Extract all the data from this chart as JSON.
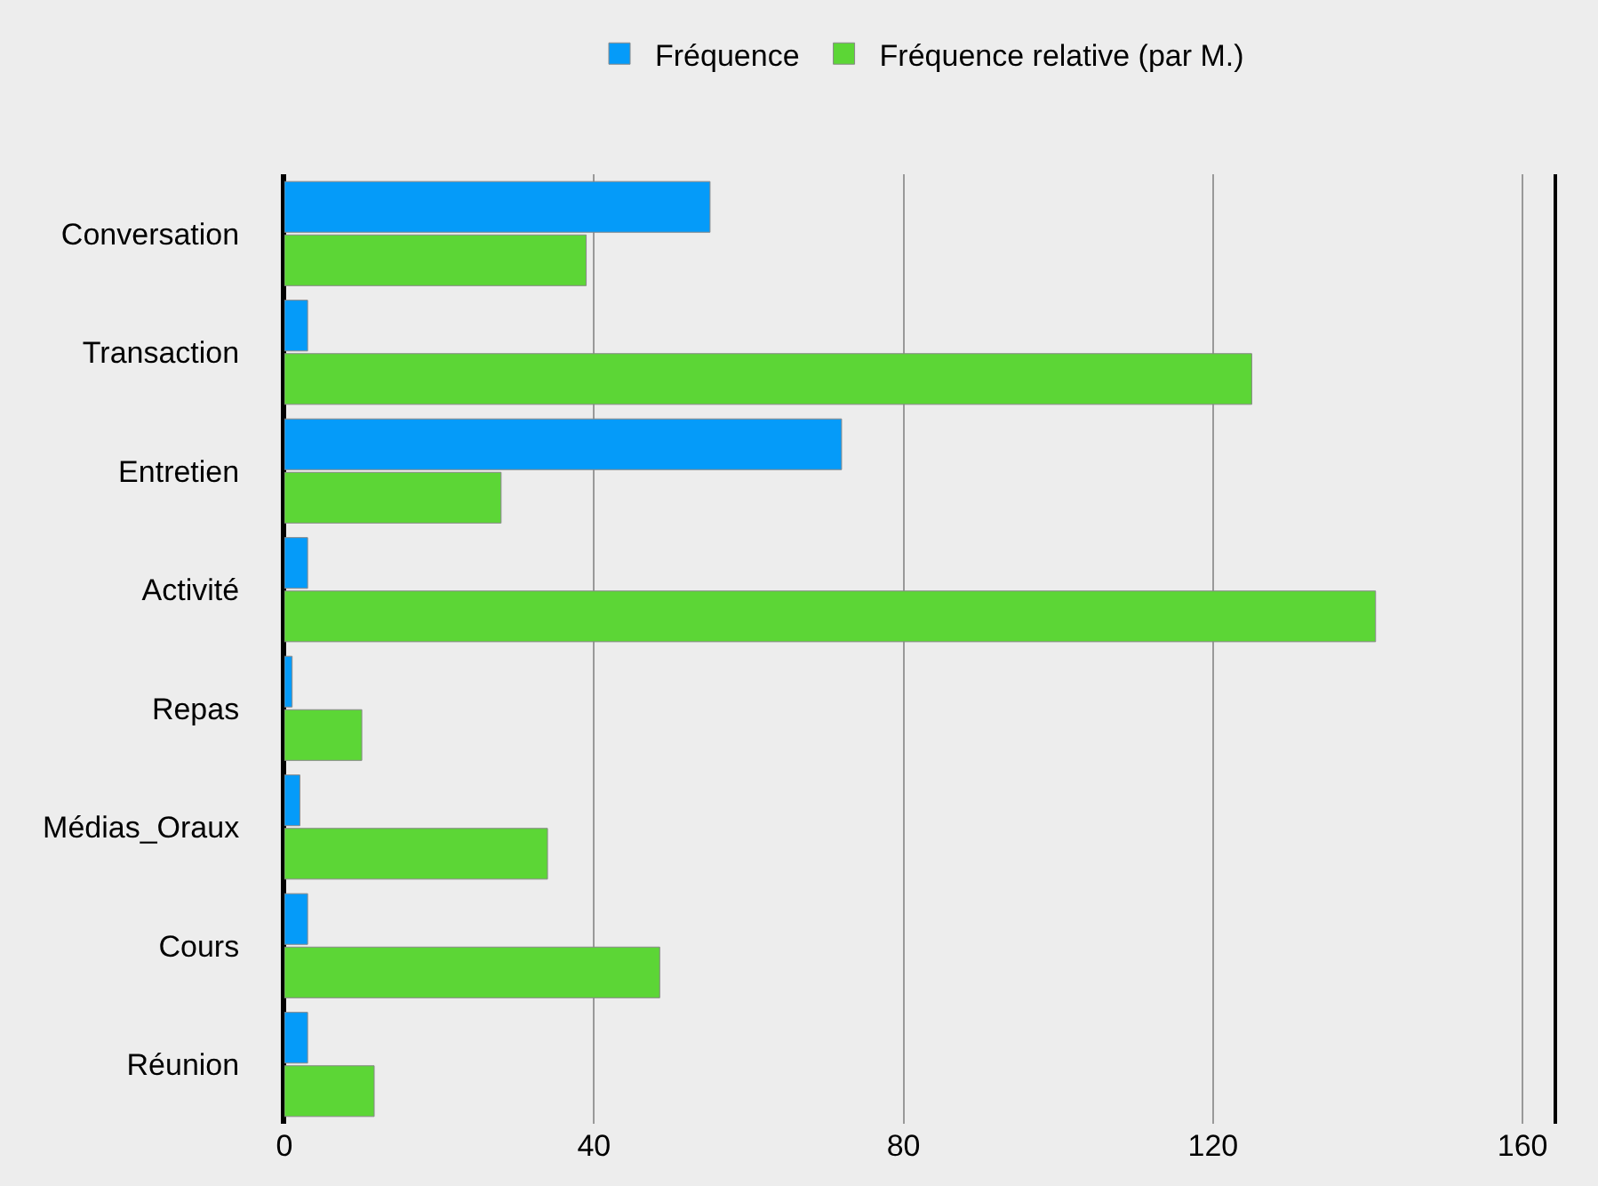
{
  "chart_data": {
    "type": "bar",
    "orientation": "horizontal",
    "categories": [
      "Conversation",
      "Transaction",
      "Entretien",
      "Activité",
      "Repas",
      "Médias_Oraux",
      "Cours",
      "Réunion"
    ],
    "series": [
      {
        "name": "Fréquence",
        "color": "#059bf9",
        "values": [
          55,
          3,
          72,
          3,
          1,
          2,
          3,
          3
        ]
      },
      {
        "name": "Fréquence relative (par M.)",
        "color": "#5cd636",
        "values": [
          39,
          125,
          28,
          141,
          10,
          34,
          48.5,
          11.6
        ]
      }
    ],
    "xlim": [
      0,
      164
    ],
    "xticks": [
      0,
      40,
      80,
      120,
      160
    ],
    "grid": "x",
    "legend": "top"
  }
}
